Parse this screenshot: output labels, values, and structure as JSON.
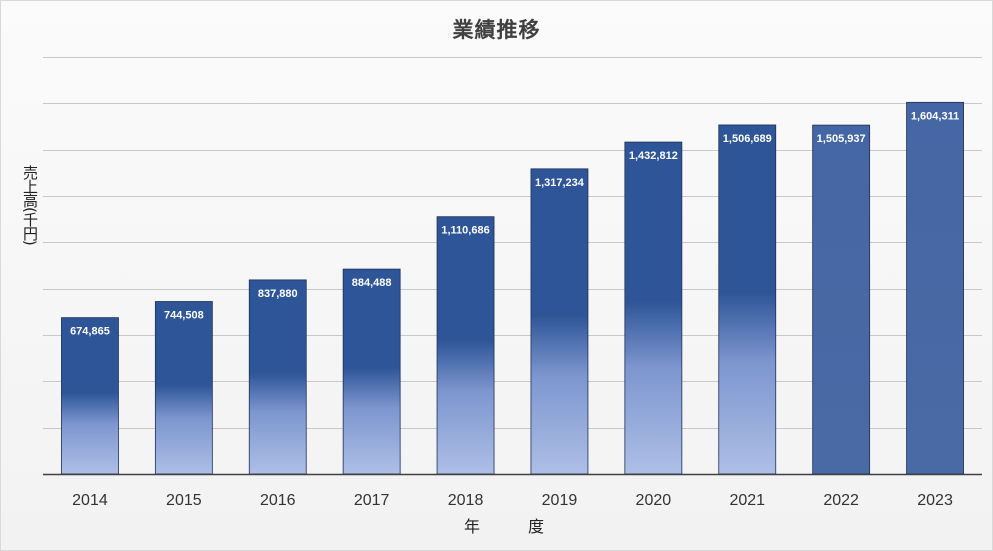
{
  "chart_data": {
    "type": "bar",
    "title": "業績推移",
    "xlabel": "年　度",
    "ylabel": "売上高(千円)",
    "categories": [
      "2014",
      "2015",
      "2016",
      "2017",
      "2018",
      "2019",
      "2020",
      "2021",
      "2022",
      "2023"
    ],
    "values": [
      674865,
      744508,
      837880,
      884488,
      1110686,
      1317234,
      1432812,
      1506689,
      1505937,
      1604311
    ],
    "data_labels": [
      "674,865",
      "744,508",
      "837,880",
      "884,488",
      "1,110,686",
      "1,317,234",
      "1,432,812",
      "1,506,689",
      "1,505,937",
      "1,604,311"
    ],
    "ylim": [
      0,
      1800000
    ],
    "y_gridline_step": 200000,
    "y_tick_labels_shown": false,
    "grid": true,
    "legend": "none",
    "bar_style": [
      "gradient",
      "gradient",
      "gradient",
      "gradient",
      "gradient",
      "gradient",
      "gradient",
      "gradient",
      "solid",
      "solid"
    ],
    "colors": {
      "bar_dark": "#2e5597",
      "bar_light": "#aebfe6",
      "bar_solid": "#4a6aa5",
      "bar_solid_top": "#4566a4",
      "bar_border": "#1f2f55",
      "gridline": "#c8c8c8",
      "axis": "#404040"
    }
  }
}
